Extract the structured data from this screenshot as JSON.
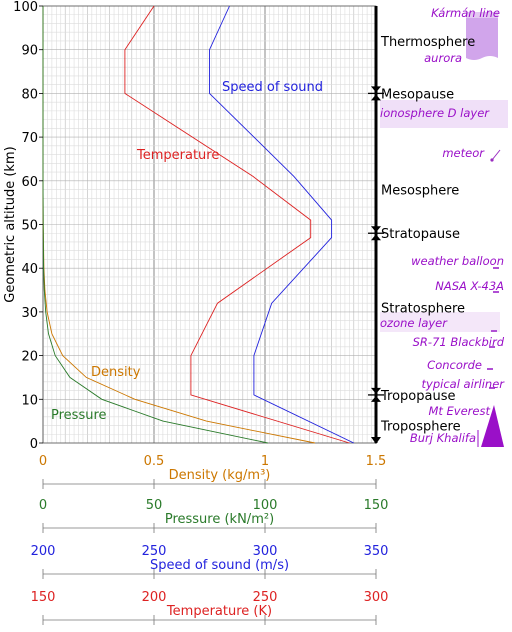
{
  "chart_data": {
    "type": "line",
    "ylabel": "Geometric altitude (km)",
    "ylim": [
      0,
      100
    ],
    "y_ticks": [
      0,
      10,
      20,
      30,
      40,
      50,
      60,
      70,
      80,
      90,
      100
    ],
    "grid": true,
    "axes": [
      {
        "id": "density",
        "label": "Density (kg/m³)",
        "color": "#cc7700",
        "min": 0,
        "max": 1.5,
        "ticks": [
          "0",
          "0.5",
          "1",
          "1.5"
        ]
      },
      {
        "id": "pressure",
        "label": "Pressure (kN/m²)",
        "color": "#2a7a2a",
        "min": 0,
        "max": 150,
        "ticks": [
          "0",
          "50",
          "100",
          "150"
        ]
      },
      {
        "id": "sound",
        "label": "Speed of sound (m/s)",
        "color": "#2222dd",
        "min": 200,
        "max": 350,
        "ticks": [
          "200",
          "250",
          "300",
          "350"
        ]
      },
      {
        "id": "temperature",
        "label": "Temperature (K)",
        "color": "#dd2222",
        "min": 150,
        "max": 300,
        "ticks": [
          "150",
          "200",
          "250",
          "300"
        ]
      }
    ],
    "series": [
      {
        "name": "Temperature",
        "axis": "temperature",
        "color": "#dd2222",
        "points": [
          [
            288,
            0
          ],
          [
            216.6,
            11
          ],
          [
            216.6,
            20
          ],
          [
            228.6,
            32
          ],
          [
            270.6,
            47
          ],
          [
            270.6,
            51
          ],
          [
            244.6,
            61
          ],
          [
            186.9,
            80
          ],
          [
            186.9,
            90
          ],
          [
            200,
            100
          ]
        ]
      },
      {
        "name": "Speed of sound",
        "axis": "sound",
        "color": "#2222dd",
        "points": [
          [
            340,
            0
          ],
          [
            295,
            11
          ],
          [
            295,
            20
          ],
          [
            303,
            32
          ],
          [
            330,
            47
          ],
          [
            330,
            51
          ],
          [
            313,
            61
          ],
          [
            275,
            80
          ],
          [
            275,
            90
          ],
          [
            284,
            100
          ]
        ]
      },
      {
        "name": "Density",
        "axis": "density",
        "color": "#cc7700",
        "points": [
          [
            1.225,
            0
          ],
          [
            0.736,
            5
          ],
          [
            0.414,
            10
          ],
          [
            0.195,
            15
          ],
          [
            0.0889,
            20
          ],
          [
            0.0401,
            25
          ],
          [
            0.0184,
            30
          ],
          [
            0.00846,
            35
          ],
          [
            0.004,
            40
          ],
          [
            0.001,
            50
          ],
          [
            0,
            60
          ],
          [
            0,
            100
          ]
        ]
      },
      {
        "name": "Pressure",
        "axis": "pressure",
        "color": "#2a7a2a",
        "points": [
          [
            101.3,
            0
          ],
          [
            54,
            5
          ],
          [
            26.5,
            10
          ],
          [
            12.1,
            15
          ],
          [
            5.5,
            20
          ],
          [
            2.5,
            25
          ],
          [
            1.2,
            30
          ],
          [
            0.57,
            35
          ],
          [
            0.29,
            40
          ],
          [
            0.08,
            50
          ],
          [
            0,
            60
          ],
          [
            0,
            100
          ]
        ]
      }
    ],
    "layers": [
      {
        "name": "Thermosphere",
        "altitude": 92
      },
      {
        "name": "Mesopause",
        "altitude": 80,
        "boundary": true
      },
      {
        "name": "Mesosphere",
        "altitude": 58
      },
      {
        "name": "Stratopause",
        "altitude": 48,
        "boundary": true
      },
      {
        "name": "Stratosphere",
        "altitude": 31
      },
      {
        "name": "Tropopause",
        "altitude": 11,
        "boundary": true
      },
      {
        "name": "Troposphere",
        "altitude": 4
      }
    ],
    "annotations": [
      {
        "label": "Kármán line",
        "altitude": 100
      },
      {
        "label": "aurora",
        "altitude": 87
      },
      {
        "label": "ionosphere D layer",
        "altitude": 75
      },
      {
        "label": "meteor",
        "altitude": 66
      },
      {
        "label": "weather balloon",
        "altitude": 42
      },
      {
        "label": "NASA X-43A",
        "altitude": 35
      },
      {
        "label": "ozone layer",
        "altitude": 27
      },
      {
        "label": "SR-71 Blackbird",
        "altitude": 23
      },
      {
        "label": "Concorde",
        "altitude": 18
      },
      {
        "label": "typical airliner",
        "altitude": 13
      },
      {
        "label": "Mt Everest",
        "altitude": 8.8
      },
      {
        "label": "Burj Khalifa",
        "altitude": 0.8
      }
    ]
  }
}
